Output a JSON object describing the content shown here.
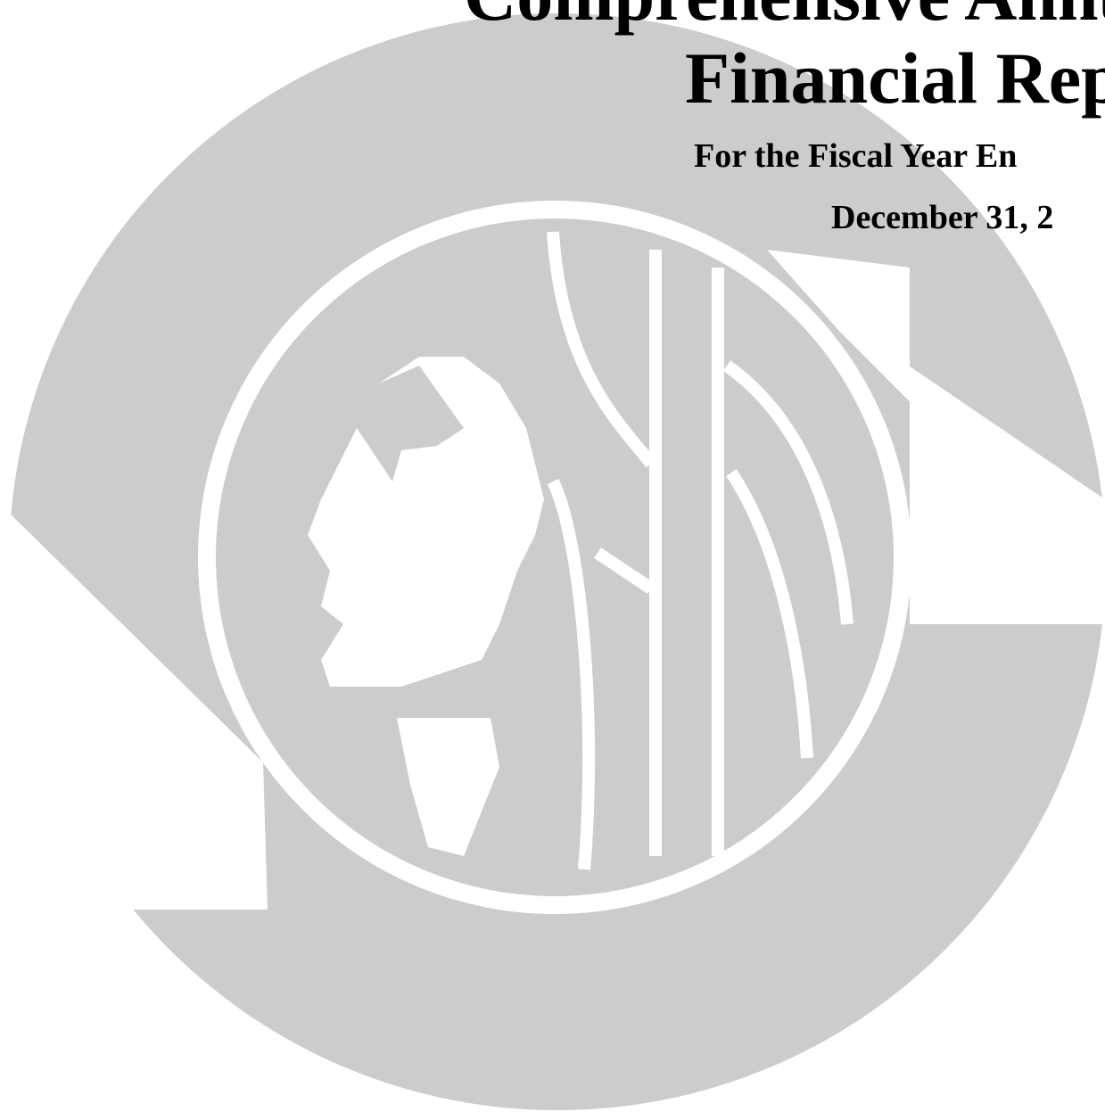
{
  "header": {
    "title_line_1": "Comprehensive Annu",
    "title_line_2": "Financial Rep",
    "subtitle_line_1": "For the Fiscal Year En",
    "subtitle_line_2": "December 31, 2"
  }
}
